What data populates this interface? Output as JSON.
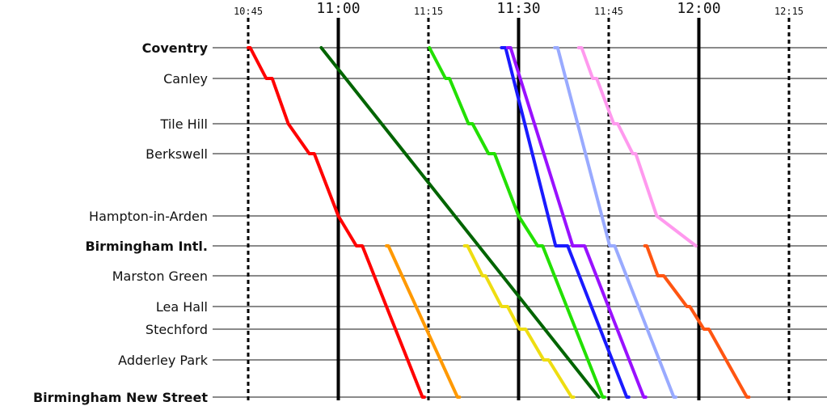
{
  "chart_data": {
    "type": "line",
    "title": "",
    "xlabel": "",
    "ylabel": "",
    "x_ticks": [
      {
        "label": "10:45",
        "major": false
      },
      {
        "label": "11:00",
        "major": true
      },
      {
        "label": "11:15",
        "major": false
      },
      {
        "label": "11:30",
        "major": true
      },
      {
        "label": "11:45",
        "major": false
      },
      {
        "label": "12:00",
        "major": true
      },
      {
        "label": "12:15",
        "major": false
      }
    ],
    "xlim": [
      "10:45",
      "12:21"
    ],
    "stations": [
      {
        "name": "Coventry",
        "bold": true
      },
      {
        "name": "Canley",
        "bold": false
      },
      {
        "name": "Tile Hill",
        "bold": false
      },
      {
        "name": "Berkswell",
        "bold": false
      },
      {
        "name": "Hampton-in-Arden",
        "bold": false
      },
      {
        "name": "Birmingham Intl.",
        "bold": true
      },
      {
        "name": "Marston Green",
        "bold": false
      },
      {
        "name": "Lea Hall",
        "bold": false
      },
      {
        "name": "Stechford",
        "bold": false
      },
      {
        "name": "Adderley Park",
        "bold": false
      },
      {
        "name": "Birmingham New Street",
        "bold": true
      }
    ],
    "series": [
      {
        "color": "#ff0000",
        "points": [
          [
            "10:45:00",
            0
          ],
          [
            "10:45:20",
            0
          ],
          [
            "10:48:00",
            1
          ],
          [
            "10:49:00",
            1
          ],
          [
            "10:51:40",
            2
          ],
          [
            "10:55:10",
            3
          ],
          [
            "10:56:00",
            3
          ],
          [
            "11:00:00",
            4
          ],
          [
            "11:03:00",
            5
          ],
          [
            "11:04:00",
            5
          ],
          [
            "11:14:00",
            10
          ],
          [
            "11:14:20",
            10
          ]
        ]
      },
      {
        "color": "#006400",
        "points": [
          [
            "10:57:10",
            0
          ],
          [
            "11:43:20",
            10
          ]
        ]
      },
      {
        "color": "#ff9900",
        "points": [
          [
            "11:08:00",
            5
          ],
          [
            "11:08:20",
            5
          ],
          [
            "11:19:50",
            10
          ],
          [
            "11:20:10",
            10
          ]
        ]
      },
      {
        "color": "#22e000",
        "points": [
          [
            "11:15:10",
            0
          ],
          [
            "11:17:50",
            1
          ],
          [
            "11:18:30",
            1
          ],
          [
            "11:21:40",
            2
          ],
          [
            "11:22:20",
            2
          ],
          [
            "11:25:00",
            3
          ],
          [
            "11:26:00",
            3
          ],
          [
            "11:30:00",
            4
          ],
          [
            "11:33:10",
            5
          ],
          [
            "11:34:00",
            5
          ],
          [
            "11:44:00",
            10
          ],
          [
            "11:44:20",
            10
          ]
        ]
      },
      {
        "color": "#1a1aff",
        "points": [
          [
            "11:27:10",
            0
          ],
          [
            "11:27:50",
            0
          ],
          [
            "11:36:10",
            5
          ],
          [
            "11:38:10",
            5
          ],
          [
            "11:48:00",
            10
          ],
          [
            "11:48:20",
            10
          ]
        ]
      },
      {
        "color": "#9911ff",
        "points": [
          [
            "11:28:10",
            0
          ],
          [
            "11:28:40",
            0
          ],
          [
            "11:39:00",
            5
          ],
          [
            "11:41:00",
            5
          ],
          [
            "11:50:50",
            10
          ],
          [
            "11:51:10",
            10
          ]
        ]
      },
      {
        "color": "#99aaff",
        "points": [
          [
            "11:36:00",
            0
          ],
          [
            "11:36:30",
            0
          ],
          [
            "11:45:10",
            5
          ],
          [
            "11:46:00",
            5
          ],
          [
            "11:55:50",
            10
          ],
          [
            "11:56:10",
            10
          ]
        ]
      },
      {
        "color": "#ff99ee",
        "points": [
          [
            "11:40:00",
            0
          ],
          [
            "11:40:30",
            0
          ],
          [
            "11:42:20",
            1
          ],
          [
            "11:43:00",
            1
          ],
          [
            "11:45:50",
            2
          ],
          [
            "11:46:30",
            2
          ],
          [
            "11:49:00",
            3
          ],
          [
            "11:49:30",
            3
          ],
          [
            "11:53:00",
            4
          ],
          [
            "11:59:30",
            5
          ]
        ]
      },
      {
        "color": "#ff5511",
        "points": [
          [
            "11:51:00",
            5
          ],
          [
            "11:51:20",
            5
          ],
          [
            "11:53:10",
            6
          ],
          [
            "11:54:10",
            6
          ],
          [
            "11:58:00",
            7
          ],
          [
            "11:58:30",
            7
          ],
          [
            "12:00:50",
            8
          ],
          [
            "12:01:40",
            8
          ],
          [
            "12:08:00",
            10
          ],
          [
            "12:08:20",
            10
          ]
        ]
      },
      {
        "color": "#eedd11",
        "points": [
          [
            "11:21:00",
            5
          ],
          [
            "11:21:30",
            5
          ],
          [
            "11:24:00",
            6
          ],
          [
            "11:24:30",
            6
          ],
          [
            "11:27:10",
            7
          ],
          [
            "11:28:10",
            7
          ],
          [
            "11:30:10",
            8
          ],
          [
            "11:31:10",
            8
          ],
          [
            "11:34:10",
            9
          ],
          [
            "11:35:00",
            9
          ],
          [
            "11:38:50",
            10
          ],
          [
            "11:39:10",
            10
          ]
        ]
      }
    ]
  }
}
